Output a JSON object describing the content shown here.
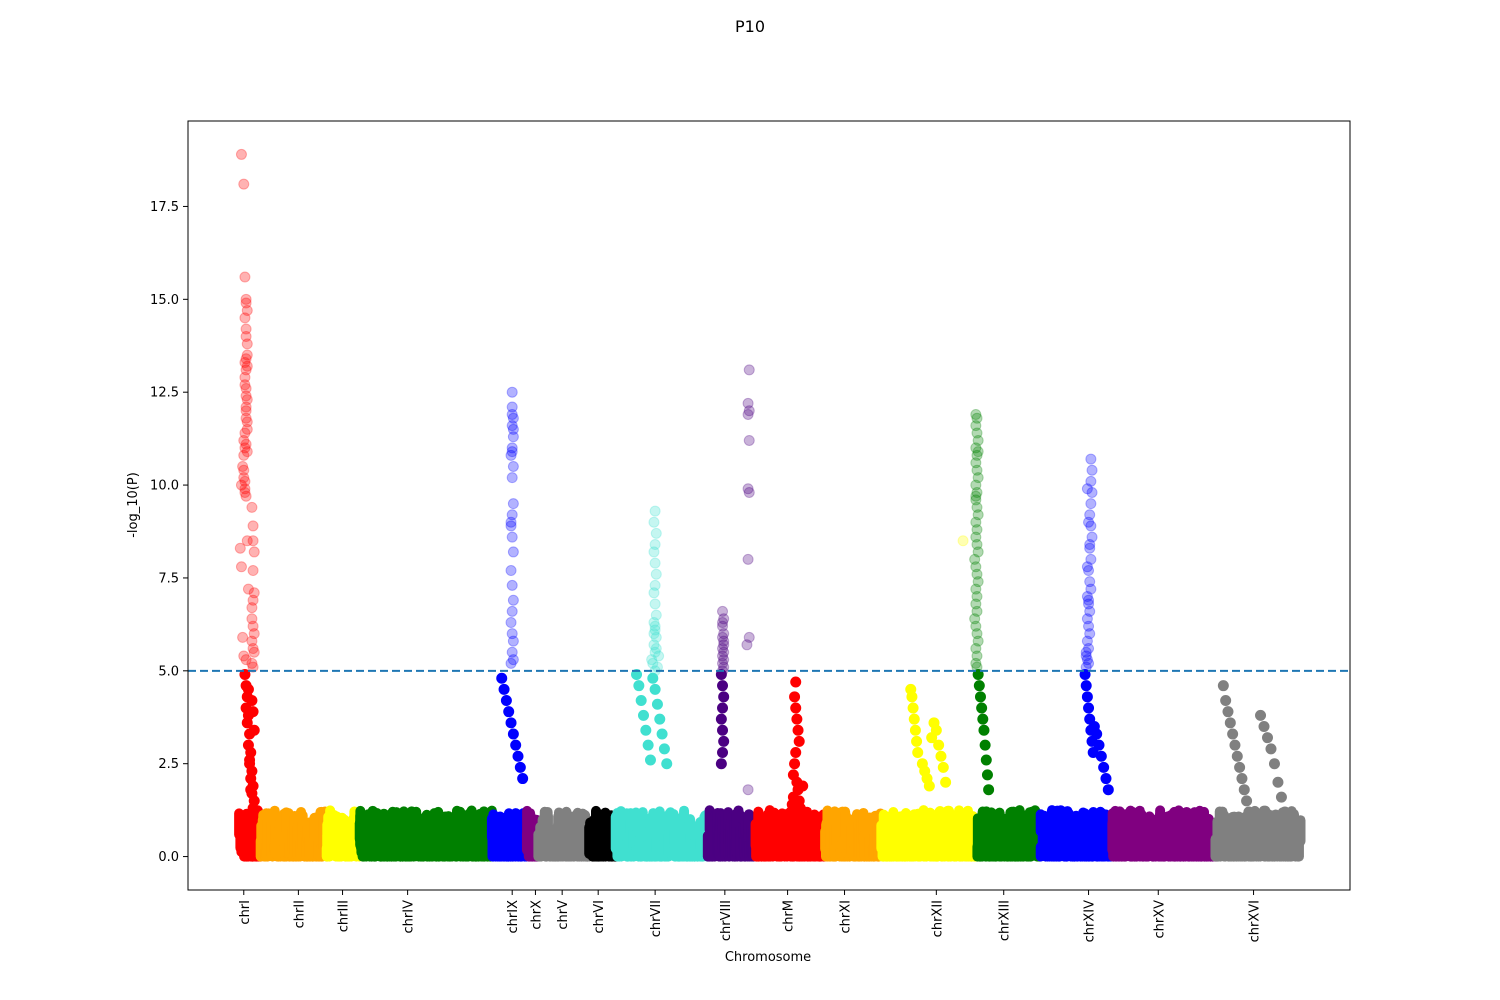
{
  "chart_data": {
    "type": "scatter",
    "title": "P10",
    "xlabel": "Chromosome",
    "ylabel": "-log_10(P)",
    "ylim": [
      -0.9,
      19.8
    ],
    "yticks": [
      0.0,
      2.5,
      5.0,
      7.5,
      10.0,
      12.5,
      15.0,
      17.5
    ],
    "ytick_labels": [
      "0.0",
      "2.5",
      "5.0",
      "7.5",
      "10.0",
      "12.5",
      "15.0",
      "17.5"
    ],
    "xlim": [
      0,
      100
    ],
    "threshold": {
      "value": 5.0,
      "color": "#1f77b4",
      "style": "dashed"
    },
    "grid": false,
    "legend": "none",
    "chromosomes": [
      {
        "name": "chrI",
        "tick": 4.8,
        "start": 4.4,
        "end": 6.2,
        "color": "#ff0000"
      },
      {
        "name": "chrII",
        "tick": 9.5,
        "start": 6.2,
        "end": 11.8,
        "color": "#ffa500"
      },
      {
        "name": "chrIII",
        "tick": 13.3,
        "start": 11.8,
        "end": 14.6,
        "color": "#ffff00"
      },
      {
        "name": "chrIV",
        "tick": 18.9,
        "start": 14.6,
        "end": 26.0,
        "color": "#008000"
      },
      {
        "name": "chrIX",
        "tick": 27.9,
        "start": 26.0,
        "end": 29.1,
        "color": "#0000ff"
      },
      {
        "name": "chrX",
        "tick": 29.9,
        "start": 29.1,
        "end": 30.1,
        "color": "#800080"
      },
      {
        "name": "chrV",
        "tick": 32.2,
        "start": 30.1,
        "end": 34.5,
        "color": "#808080"
      },
      {
        "name": "chrVI",
        "tick": 35.3,
        "start": 34.5,
        "end": 36.8,
        "color": "#000000"
      },
      {
        "name": "chrVII",
        "tick": 40.2,
        "start": 36.8,
        "end": 44.6,
        "color": "#40e0d0"
      },
      {
        "name": "chrVIII",
        "tick": 46.2,
        "start": 44.6,
        "end": 48.7,
        "color": "#4b0082"
      },
      {
        "name": "chrM",
        "tick": 51.6,
        "start": 48.7,
        "end": 54.7,
        "color": "#ff0000"
      },
      {
        "name": "chrXI",
        "tick": 56.5,
        "start": 54.7,
        "end": 59.5,
        "color": "#ffa500"
      },
      {
        "name": "chrXII",
        "tick": 64.4,
        "start": 59.5,
        "end": 67.8,
        "color": "#ffff00"
      },
      {
        "name": "chrXIII",
        "tick": 70.2,
        "start": 67.8,
        "end": 73.3,
        "color": "#008000"
      },
      {
        "name": "chrXIV",
        "tick": 77.5,
        "start": 73.3,
        "end": 79.4,
        "color": "#0000ff"
      },
      {
        "name": "chrXV",
        "tick": 83.5,
        "start": 79.4,
        "end": 88.4,
        "color": "#800080"
      },
      {
        "name": "chrXVI",
        "tick": 91.7,
        "start": 88.4,
        "end": 95.6,
        "color": "#808080"
      }
    ],
    "series": [
      {
        "name": "chrI",
        "color": "#ff0000",
        "alpha": 0.3,
        "x": [
          4.6,
          4.8,
          4.9,
          5.0,
          5.0,
          5.1,
          4.9,
          5.0,
          5.0,
          5.1,
          4.7,
          4.8,
          4.6,
          4.9,
          4.5,
          4.6,
          5.5,
          5.6,
          5.6,
          5.7,
          5.6,
          5.7,
          5.5,
          4.7,
          4.8,
          5.0,
          5.1,
          4.9,
          5.0,
          4.9,
          5.0,
          5.1,
          5.0,
          5.0,
          5.1,
          4.8,
          4.9,
          4.8,
          4.9,
          5.0,
          5.1,
          5.2,
          4.9,
          5.0,
          5.5,
          5.6,
          5.5,
          5.6,
          5.7,
          5.5,
          5.6,
          5.0,
          5.1,
          4.9,
          5.0,
          5.1,
          4.8,
          4.9,
          5.0,
          5.1,
          5.6,
          5.7
        ],
        "y": [
          18.9,
          18.1,
          15.6,
          15.0,
          14.9,
          14.7,
          14.5,
          14.2,
          14.0,
          13.8,
          10.5,
          10.4,
          10.0,
          9.8,
          8.3,
          7.8,
          9.4,
          8.9,
          8.5,
          8.2,
          7.7,
          7.1,
          6.7,
          5.9,
          5.4,
          5.3,
          13.5,
          13.3,
          13.1,
          12.9,
          12.6,
          12.3,
          12.0,
          11.8,
          11.5,
          11.2,
          11.0,
          10.8,
          10.1,
          9.7,
          8.5,
          7.2,
          12.7,
          12.4,
          6.4,
          6.2,
          5.8,
          5.6,
          5.5,
          5.2,
          5.1,
          12.1,
          11.7,
          11.4,
          11.1,
          10.9,
          10.2,
          9.9,
          13.4,
          13.2,
          6.9,
          6.0
        ]
      },
      {
        "name": "chrIX",
        "color": "#0000ff",
        "alpha": 0.3,
        "x": [
          27.9,
          27.9,
          28.0,
          27.9,
          28.0,
          27.9,
          27.8,
          28.0,
          27.9,
          28.0,
          27.9,
          27.8,
          27.9,
          28.0,
          27.8,
          27.9,
          28.0,
          27.9,
          27.8,
          27.9,
          28.0,
          27.9,
          28.0,
          27.8,
          27.9,
          28.0,
          27.9,
          27.8
        ],
        "y": [
          12.5,
          12.1,
          11.8,
          11.6,
          11.3,
          11.0,
          10.8,
          10.5,
          10.2,
          9.5,
          9.2,
          8.9,
          8.6,
          8.2,
          7.7,
          7.3,
          6.9,
          6.6,
          6.3,
          6.0,
          5.8,
          5.5,
          5.3,
          5.2,
          11.9,
          11.5,
          10.9,
          9.0
        ]
      },
      {
        "name": "chrVII",
        "color": "#40e0d0",
        "alpha": 0.3,
        "x": [
          40.2,
          40.1,
          40.3,
          40.2,
          40.1,
          40.2,
          40.3,
          40.2,
          40.1,
          40.2,
          40.3,
          40.1,
          40.2,
          40.3,
          40.1,
          40.2,
          39.9,
          40.0,
          40.4,
          40.5,
          40.2,
          40.3,
          40.1,
          40.2
        ],
        "y": [
          9.3,
          9.0,
          8.7,
          8.4,
          8.2,
          7.9,
          7.6,
          7.3,
          7.1,
          6.8,
          6.5,
          6.3,
          6.1,
          5.9,
          5.7,
          5.5,
          5.3,
          5.2,
          5.1,
          5.4,
          5.0,
          5.6,
          6.0,
          6.2
        ]
      },
      {
        "name": "chrVIII",
        "color": "#4b0082",
        "alpha": 0.3,
        "x": [
          46.0,
          46.1,
          46.0,
          46.1,
          46.0,
          46.1,
          46.0,
          46.1,
          46.0,
          46.1,
          46.0,
          46.1,
          46.0,
          46.1,
          46.0
        ],
        "y": [
          6.6,
          6.4,
          6.2,
          6.0,
          5.9,
          5.8,
          5.6,
          5.5,
          5.4,
          5.3,
          5.2,
          5.1,
          6.3,
          5.7,
          5.0
        ]
      },
      {
        "name": "chrVIII-outliers",
        "color": "#4b0082",
        "alpha": 0.3,
        "x": [
          48.3,
          48.2,
          48.3,
          48.2,
          48.3,
          48.2,
          48.3,
          48.2,
          48.3,
          48.1,
          48.2
        ],
        "y": [
          13.1,
          12.2,
          12.0,
          11.9,
          11.2,
          9.9,
          9.8,
          8.0,
          5.9,
          5.7,
          1.8
        ]
      },
      {
        "name": "chrXII",
        "color": "#ffff00",
        "alpha": 0.3,
        "x": [
          66.7
        ],
        "y": [
          8.5
        ]
      },
      {
        "name": "chrXIII",
        "color": "#008000",
        "alpha": 0.3,
        "x": [
          67.8,
          67.9,
          67.8,
          67.9,
          68.0,
          67.8,
          67.9,
          67.8,
          67.9,
          68.0,
          67.8,
          67.9,
          67.8,
          67.9,
          68.0,
          67.8,
          67.9,
          67.8,
          67.9,
          68.0,
          67.7,
          67.8,
          67.9,
          68.0,
          67.8,
          67.9,
          67.8,
          67.9,
          67.7,
          67.8,
          67.9,
          68.0,
          67.8,
          67.9,
          67.8,
          67.9,
          68.0,
          67.8
        ],
        "y": [
          11.9,
          11.8,
          11.6,
          11.4,
          11.2,
          11.0,
          10.8,
          10.6,
          10.4,
          10.2,
          10.0,
          9.8,
          9.6,
          9.4,
          9.2,
          9.0,
          8.8,
          8.6,
          8.4,
          8.2,
          8.0,
          7.8,
          7.6,
          7.4,
          7.2,
          7.0,
          6.8,
          6.6,
          6.4,
          6.2,
          6.0,
          5.8,
          5.6,
          5.4,
          5.2,
          5.1,
          10.9,
          9.7
        ]
      },
      {
        "name": "chrXIV",
        "color": "#0000ff",
        "alpha": 0.3,
        "x": [
          77.7,
          77.8,
          77.7,
          77.8,
          77.7,
          77.6,
          77.7,
          77.8,
          77.6,
          77.7,
          77.5,
          77.6,
          77.7,
          77.4,
          77.5,
          77.6,
          77.4,
          77.5,
          77.6,
          77.4,
          77.5,
          77.3,
          77.4,
          77.5,
          77.3,
          77.4,
          77.5,
          77.6,
          77.4,
          77.3,
          77.5
        ],
        "y": [
          10.7,
          10.4,
          10.1,
          9.8,
          9.5,
          9.2,
          8.9,
          8.6,
          8.3,
          8.0,
          7.7,
          7.4,
          7.2,
          7.0,
          6.8,
          6.6,
          6.4,
          6.2,
          6.0,
          5.8,
          5.6,
          5.4,
          5.3,
          5.2,
          5.1,
          9.9,
          9.0,
          8.4,
          7.8,
          5.5,
          6.9
        ]
      },
      {
        "name": "chrI-low",
        "color": "#ff0000",
        "alpha": 1.0,
        "x": [
          4.9,
          5.0,
          5.1,
          5.0,
          5.2,
          5.1,
          5.3,
          5.2,
          5.4,
          5.3,
          5.5,
          5.4,
          5.6,
          5.5,
          5.7,
          5.6,
          5.4,
          5.3,
          5.2,
          5.5,
          5.6,
          5.7,
          5.3,
          5.4
        ],
        "y": [
          4.9,
          4.6,
          4.3,
          4.0,
          3.8,
          3.6,
          3.3,
          3.0,
          2.8,
          2.5,
          2.3,
          2.1,
          1.9,
          1.7,
          1.5,
          1.3,
          1.1,
          1.0,
          4.5,
          4.2,
          3.9,
          3.4,
          2.6,
          1.8
        ]
      },
      {
        "name": "chrM",
        "color": "#ff0000",
        "alpha": 1.0,
        "x": [
          52.3,
          52.2,
          52.3,
          52.4,
          52.5,
          52.6,
          52.3,
          52.2,
          52.1,
          52.4,
          52.5,
          52.6,
          52.7,
          52.8,
          52.9,
          52.1,
          52.0,
          51.9,
          51.8,
          51.7
        ],
        "y": [
          4.7,
          4.3,
          4.0,
          3.7,
          3.4,
          3.1,
          2.8,
          2.5,
          2.2,
          2.0,
          1.8,
          1.5,
          1.3,
          1.1,
          1.9,
          1.6,
          1.4,
          1.2,
          1.0,
          0.8
        ]
      },
      {
        "name": "chrXII-peak",
        "color": "#ffff00",
        "alpha": 1.0,
        "x": [
          62.2,
          62.3,
          62.4,
          62.5,
          62.6,
          62.7,
          62.8,
          63.2,
          63.4,
          63.6,
          63.8,
          64.0,
          64.2,
          64.4,
          64.6,
          64.8,
          65.0,
          65.2
        ],
        "y": [
          4.5,
          4.3,
          4.0,
          3.7,
          3.4,
          3.1,
          2.8,
          2.5,
          2.3,
          2.1,
          1.9,
          3.2,
          3.6,
          3.4,
          3.0,
          2.7,
          2.4,
          2.0
        ]
      },
      {
        "name": "chrXVI-peak",
        "color": "#808080",
        "alpha": 1.0,
        "x": [
          89.1,
          89.3,
          89.5,
          89.7,
          89.9,
          90.1,
          90.3,
          90.5,
          90.7,
          90.9,
          91.1,
          91.3,
          91.5,
          91.7,
          92.3,
          92.6,
          92.9,
          93.2,
          93.5,
          93.8,
          94.1,
          94.4
        ],
        "y": [
          4.6,
          4.2,
          3.9,
          3.6,
          3.3,
          3.0,
          2.7,
          2.4,
          2.1,
          1.8,
          1.5,
          1.2,
          1.0,
          0.8,
          3.8,
          3.5,
          3.2,
          2.9,
          2.5,
          2.0,
          1.6,
          1.2
        ]
      },
      {
        "name": "chrXIV-mid",
        "color": "#0000ff",
        "alpha": 1.0,
        "x": [
          77.2,
          77.3,
          77.4,
          77.5,
          77.6,
          77.7,
          77.8,
          77.9,
          78.0,
          78.2,
          78.4,
          78.6,
          78.8,
          79.0,
          79.2
        ],
        "y": [
          4.9,
          4.6,
          4.3,
          4.0,
          3.7,
          3.4,
          3.1,
          2.8,
          3.5,
          3.3,
          3.0,
          2.7,
          2.4,
          2.1,
          1.8
        ]
      },
      {
        "name": "chrVII-mid",
        "color": "#40e0d0",
        "alpha": 1.0,
        "x": [
          38.6,
          38.8,
          39.0,
          39.2,
          39.4,
          39.6,
          39.8,
          40.0,
          40.2,
          40.4,
          40.6,
          40.8,
          41.0,
          41.2
        ],
        "y": [
          4.9,
          4.6,
          4.2,
          3.8,
          3.4,
          3.0,
          2.6,
          4.8,
          4.5,
          4.1,
          3.7,
          3.3,
          2.9,
          2.5
        ]
      },
      {
        "name": "chrIX-mid",
        "color": "#0000ff",
        "alpha": 1.0,
        "x": [
          27.0,
          27.2,
          27.4,
          27.6,
          27.8,
          28.0,
          28.2,
          28.4,
          28.6,
          28.8
        ],
        "y": [
          4.8,
          4.5,
          4.2,
          3.9,
          3.6,
          3.3,
          3.0,
          2.7,
          2.4,
          2.1
        ]
      },
      {
        "name": "chrVIII-mid",
        "color": "#4b0082",
        "alpha": 1.0,
        "x": [
          45.9,
          46.0,
          46.1,
          46.0,
          45.9,
          46.0,
          46.1,
          46.0,
          45.9
        ],
        "y": [
          4.9,
          4.6,
          4.3,
          4.0,
          3.7,
          3.4,
          3.1,
          2.8,
          2.5
        ]
      },
      {
        "name": "chrXIII-mid",
        "color": "#008000",
        "alpha": 1.0,
        "x": [
          68.0,
          68.1,
          68.2,
          68.3,
          68.4,
          68.5,
          68.6,
          68.7,
          68.8,
          68.9
        ],
        "y": [
          4.9,
          4.6,
          4.3,
          4.0,
          3.7,
          3.4,
          3.0,
          2.6,
          2.2,
          1.8
        ]
      }
    ]
  }
}
